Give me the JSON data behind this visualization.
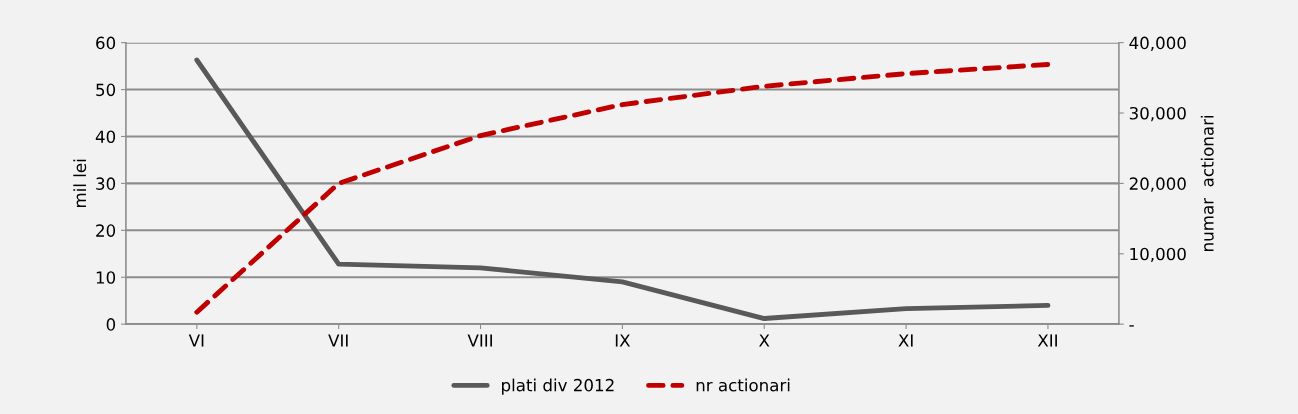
{
  "chart_data": {
    "type": "line",
    "categories": [
      "VI",
      "VII",
      "VIII",
      "IX",
      "X",
      "XI",
      "XII"
    ],
    "series": [
      {
        "name": "plati div 2012",
        "color": "#595959",
        "values": [
          56.3,
          12.8,
          12,
          9,
          1.2,
          3.3,
          4
        ],
        "line_style": "solid"
      },
      {
        "name": "nr actionari",
        "color": "#c00000",
        "values": [
          1700,
          20000,
          26800,
          31200,
          33800,
          35600,
          36900
        ],
        "axis": "y2",
        "line_style": "dashed"
      }
    ],
    "ylabel": "mil lei",
    "y2label": "numar  actionari",
    "ylim": [
      0,
      60
    ],
    "yticks": [
      0,
      10,
      20,
      30,
      40,
      50,
      60
    ],
    "y2lim": [
      0,
      40000
    ],
    "y2ticks": [
      {
        "value": 0,
        "label": "-"
      },
      {
        "value": 10000,
        "label": "10,000"
      },
      {
        "value": 20000,
        "label": "20,000"
      },
      {
        "value": 30000,
        "label": "30,000"
      },
      {
        "value": 40000,
        "label": "40,000"
      }
    ],
    "grid": "y",
    "legend": "bottom",
    "marker": "none"
  }
}
